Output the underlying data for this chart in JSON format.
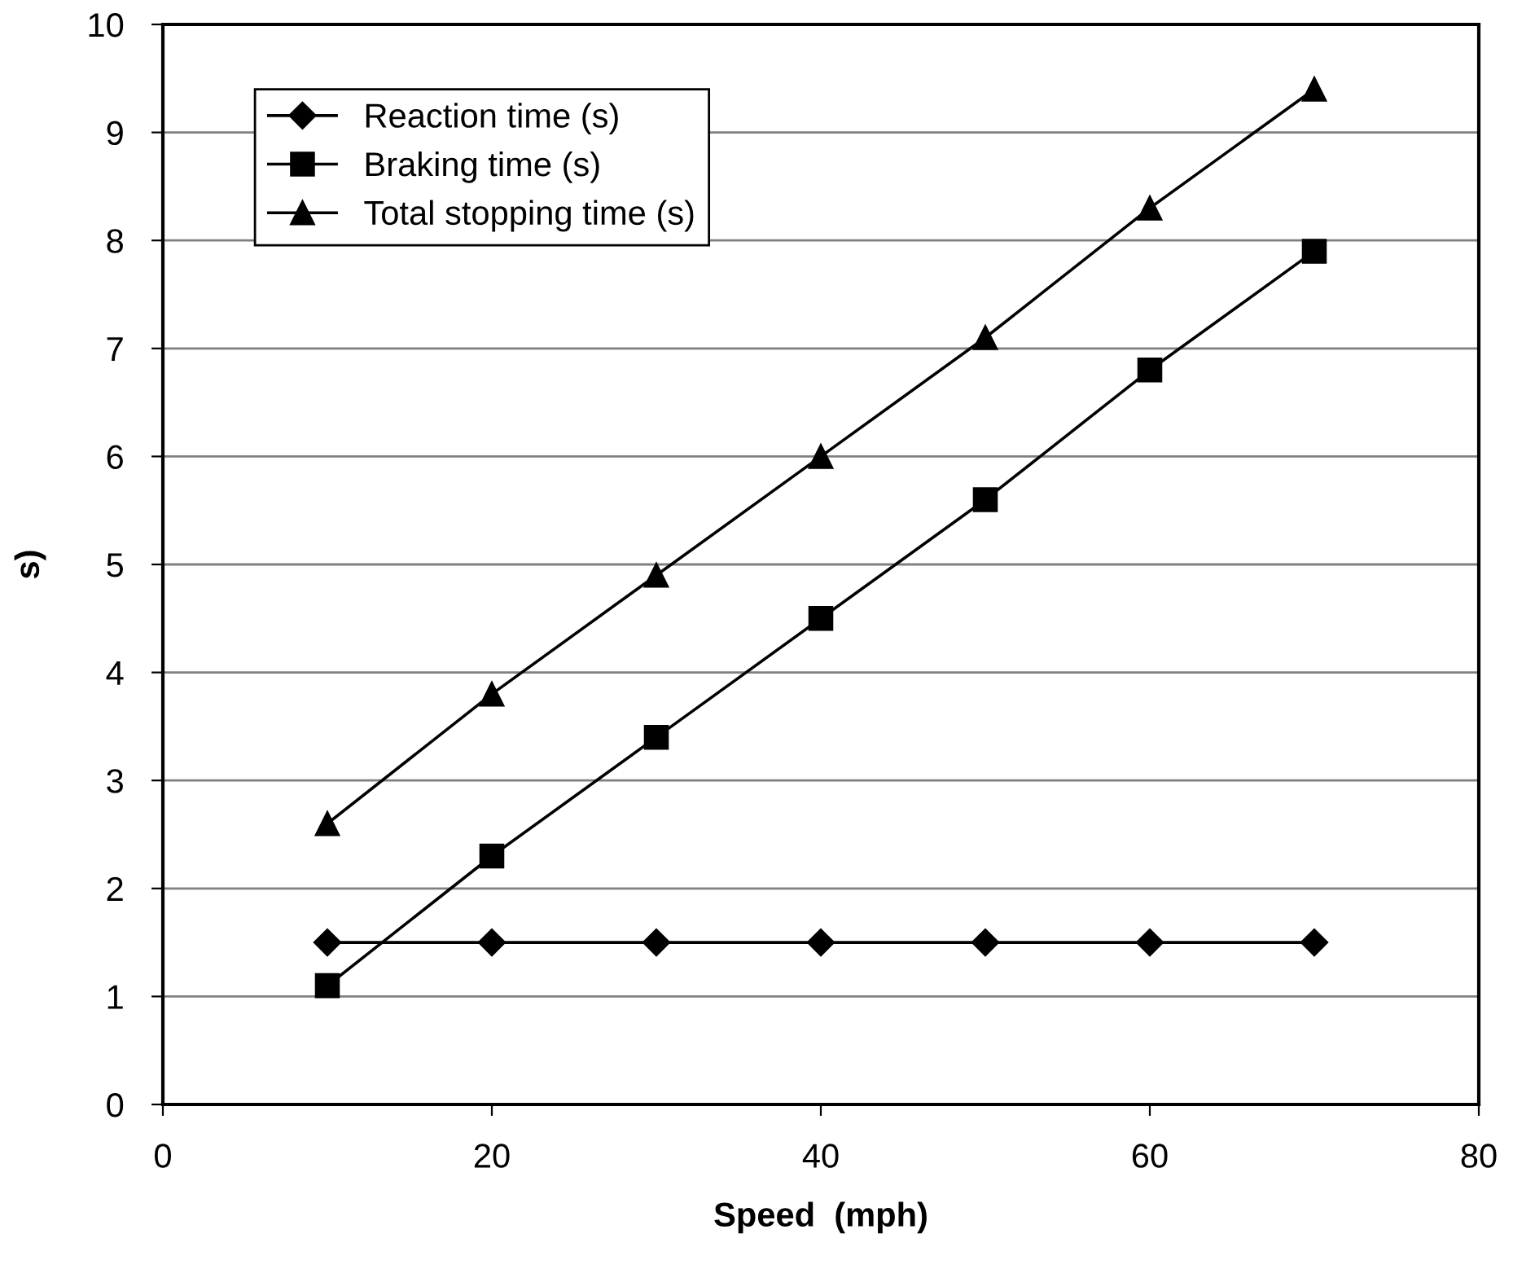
{
  "chart_data": {
    "type": "line",
    "xlabel": "Speed  (mph)",
    "ylabel": "s)",
    "x": [
      10,
      20,
      30,
      40,
      50,
      60,
      70
    ],
    "series": [
      {
        "name": "Reaction time (s)",
        "color": "#000000",
        "marker": "diamond",
        "values": [
          1.5,
          1.5,
          1.5,
          1.5,
          1.5,
          1.5,
          1.5
        ]
      },
      {
        "name": "Braking time (s)",
        "color": "#000000",
        "marker": "square",
        "values": [
          1.1,
          2.3,
          3.4,
          4.5,
          5.6,
          6.8,
          7.9
        ]
      },
      {
        "name": "Total stopping time (s)",
        "color": "#000000",
        "marker": "triangle",
        "values": [
          2.6,
          3.8,
          4.9,
          6.0,
          7.1,
          8.3,
          9.4
        ]
      }
    ],
    "xlim": [
      0,
      80
    ],
    "xticks": [
      0,
      20,
      40,
      60,
      80
    ],
    "ylim": [
      0,
      10
    ],
    "yticks": [
      0,
      1,
      2,
      3,
      4,
      5,
      6,
      7,
      8,
      9,
      10
    ],
    "grid": "y",
    "legend": "top left",
    "line_style": "solid"
  }
}
